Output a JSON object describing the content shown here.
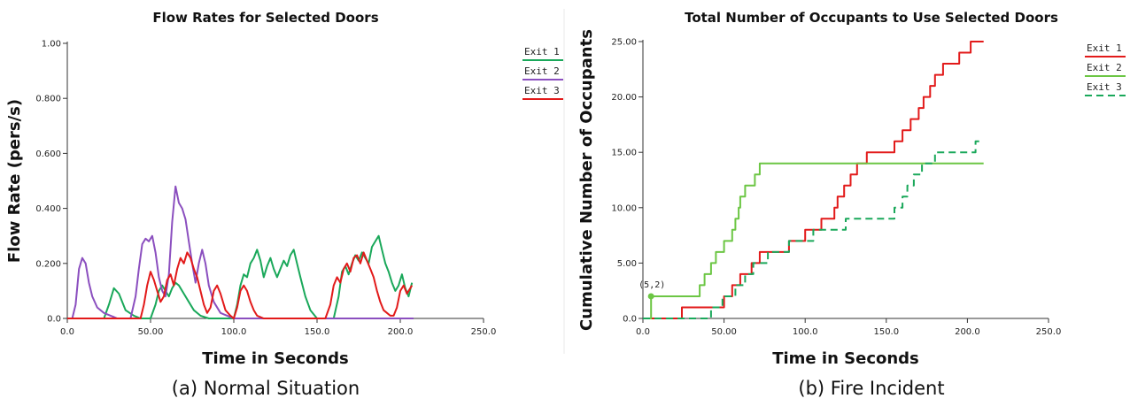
{
  "chart_data": [
    {
      "type": "line",
      "title": "Flow Rates for Selected Doors",
      "xlabel": "Time in Seconds",
      "ylabel": "Flow Rate (pers/s)",
      "caption": "(a) Normal Situation",
      "xlim": [
        0,
        250
      ],
      "ylim": [
        0,
        1.0
      ],
      "xticks": [
        0,
        50,
        100,
        150,
        200,
        250
      ],
      "xtick_labels": [
        "0.0",
        "50.00",
        "100.0",
        "150.0",
        "200.0",
        "250.0"
      ],
      "yticks": [
        0,
        0.2,
        0.4,
        0.6,
        0.8,
        1.0
      ],
      "ytick_labels": [
        "0.0",
        "0.200",
        "0.400",
        "0.600",
        "0.800",
        "1.00"
      ],
      "legend": "right",
      "grid": false,
      "series": [
        {
          "name": "Exit 1",
          "color": "#1aa85a",
          "dash": "",
          "x": [
            0,
            22,
            25,
            28,
            31,
            35,
            40,
            44,
            50,
            53,
            55,
            57,
            59,
            61,
            63,
            65,
            67,
            70,
            73,
            76,
            80,
            85,
            90,
            95,
            100,
            102,
            104,
            106,
            108,
            110,
            112,
            114,
            116,
            118,
            120,
            122,
            124,
            126,
            128,
            130,
            132,
            134,
            136,
            138,
            140,
            143,
            146,
            150,
            155,
            160,
            163,
            165,
            167,
            169,
            171,
            173,
            175,
            177,
            179,
            181,
            183,
            185,
            187,
            189,
            191,
            193,
            195,
            197,
            199,
            201,
            203,
            205,
            207
          ],
          "y": [
            0,
            0,
            0.05,
            0.11,
            0.09,
            0.03,
            0.01,
            0,
            0,
            0.05,
            0.1,
            0.12,
            0.1,
            0.08,
            0.11,
            0.13,
            0.12,
            0.09,
            0.06,
            0.03,
            0.01,
            0,
            0,
            0,
            0,
            0.05,
            0.12,
            0.16,
            0.15,
            0.2,
            0.22,
            0.25,
            0.21,
            0.15,
            0.19,
            0.22,
            0.18,
            0.15,
            0.18,
            0.21,
            0.19,
            0.23,
            0.25,
            0.2,
            0.15,
            0.08,
            0.03,
            0,
            0,
            0,
            0.08,
            0.17,
            0.19,
            0.16,
            0.2,
            0.23,
            0.21,
            0.24,
            0.22,
            0.2,
            0.26,
            0.28,
            0.3,
            0.25,
            0.2,
            0.17,
            0.13,
            0.1,
            0.12,
            0.16,
            0.11,
            0.08,
            0.13
          ]
        },
        {
          "name": "Exit 2",
          "color": "#8b4fbf",
          "dash": "",
          "x": [
            0,
            3,
            5,
            7,
            9,
            11,
            13,
            15,
            18,
            22,
            26,
            30,
            34,
            38,
            41,
            43,
            45,
            47,
            49,
            51,
            53,
            55,
            57,
            59,
            61,
            63,
            65,
            67,
            69,
            71,
            73,
            75,
            77,
            79,
            81,
            83,
            85,
            88,
            92,
            96,
            100,
            105,
            110,
            150,
            208
          ],
          "y": [
            0,
            0,
            0.05,
            0.18,
            0.22,
            0.2,
            0.13,
            0.08,
            0.04,
            0.02,
            0.01,
            0,
            0,
            0,
            0.08,
            0.18,
            0.27,
            0.29,
            0.28,
            0.3,
            0.24,
            0.15,
            0.1,
            0.08,
            0.16,
            0.35,
            0.48,
            0.42,
            0.4,
            0.36,
            0.28,
            0.2,
            0.13,
            0.2,
            0.25,
            0.2,
            0.12,
            0.06,
            0.02,
            0.01,
            0,
            0,
            0,
            0,
            0
          ]
        },
        {
          "name": "Exit 3",
          "color": "#e21a1a",
          "dash": "",
          "x": [
            0,
            44,
            46,
            48,
            50,
            52,
            54,
            56,
            58,
            60,
            62,
            64,
            66,
            68,
            70,
            72,
            74,
            76,
            78,
            80,
            82,
            84,
            86,
            88,
            90,
            92,
            95,
            98,
            100,
            102,
            104,
            106,
            108,
            110,
            112,
            114,
            118,
            122,
            155,
            158,
            160,
            162,
            164,
            166,
            168,
            170,
            172,
            174,
            176,
            178,
            180,
            182,
            184,
            186,
            188,
            190,
            192,
            194,
            196,
            198,
            200,
            202,
            204,
            206,
            207
          ],
          "y": [
            0,
            0,
            0.05,
            0.12,
            0.17,
            0.14,
            0.1,
            0.06,
            0.08,
            0.14,
            0.16,
            0.12,
            0.18,
            0.22,
            0.2,
            0.24,
            0.22,
            0.18,
            0.15,
            0.1,
            0.05,
            0.02,
            0.04,
            0.1,
            0.12,
            0.09,
            0.03,
            0.01,
            0,
            0.04,
            0.1,
            0.12,
            0.1,
            0.06,
            0.03,
            0.01,
            0,
            0,
            0,
            0.05,
            0.12,
            0.15,
            0.13,
            0.18,
            0.2,
            0.17,
            0.22,
            0.23,
            0.2,
            0.24,
            0.21,
            0.18,
            0.15,
            0.1,
            0.06,
            0.03,
            0.02,
            0.01,
            0.01,
            0.04,
            0.1,
            0.12,
            0.09,
            0.11,
            0.12
          ]
        }
      ]
    },
    {
      "type": "line",
      "title": "Total Number of Occupants to Use Selected Doors",
      "xlabel": "Time in Seconds",
      "ylabel": "Cumulative Number of Occupants",
      "caption": "(b) Fire Incident",
      "annotation": "(5,2)",
      "annotation_point": [
        5,
        2
      ],
      "xlim": [
        0,
        250
      ],
      "ylim": [
        0,
        25
      ],
      "xticks": [
        0,
        50,
        100,
        150,
        200,
        250
      ],
      "xtick_labels": [
        "0.0",
        "50.00",
        "100.0",
        "150.0",
        "200.0",
        "250.0"
      ],
      "yticks": [
        0,
        5,
        10,
        15,
        20,
        25
      ],
      "ytick_labels": [
        "0.0",
        "5.00",
        "10.00",
        "15.00",
        "20.00",
        "25.00"
      ],
      "legend": "right",
      "grid": false,
      "series": [
        {
          "name": "Exit 1",
          "color": "#e21a1a",
          "dash": "",
          "x": [
            0,
            24,
            24,
            50,
            50,
            55,
            55,
            60,
            60,
            67,
            67,
            72,
            72,
            90,
            90,
            100,
            100,
            110,
            110,
            118,
            118,
            120,
            120,
            124,
            124,
            128,
            128,
            132,
            132,
            138,
            138,
            155,
            155,
            160,
            160,
            165,
            165,
            170,
            170,
            173,
            173,
            177,
            177,
            180,
            180,
            185,
            185,
            195,
            195,
            202,
            202,
            210
          ],
          "y": [
            0,
            0,
            1,
            1,
            2,
            2,
            3,
            3,
            4,
            4,
            5,
            5,
            6,
            6,
            7,
            7,
            8,
            8,
            9,
            9,
            10,
            10,
            11,
            11,
            12,
            12,
            13,
            13,
            14,
            14,
            15,
            15,
            16,
            16,
            17,
            17,
            18,
            18,
            19,
            19,
            20,
            20,
            21,
            21,
            22,
            22,
            23,
            23,
            24,
            24,
            25,
            25
          ]
        },
        {
          "name": "Exit 2",
          "color": "#6cc644",
          "dash": "",
          "x": [
            0,
            5,
            5,
            35,
            35,
            38,
            38,
            42,
            42,
            45,
            45,
            50,
            50,
            55,
            55,
            57,
            57,
            59,
            59,
            60,
            60,
            63,
            63,
            69,
            69,
            72,
            72,
            76,
            76,
            78,
            78,
            210
          ],
          "y": [
            0,
            0,
            2,
            2,
            3,
            3,
            4,
            4,
            5,
            5,
            6,
            6,
            7,
            7,
            8,
            8,
            9,
            9,
            10,
            10,
            11,
            11,
            12,
            12,
            13,
            13,
            14,
            14,
            14,
            14,
            14,
            14
          ]
        },
        {
          "name": "Exit 3",
          "color": "#1aa85a",
          "dash": "8,5",
          "x": [
            0,
            42,
            42,
            49,
            49,
            57,
            57,
            63,
            63,
            68,
            68,
            77,
            77,
            90,
            90,
            105,
            105,
            125,
            125,
            155,
            155,
            160,
            160,
            163,
            163,
            167,
            167,
            172,
            172,
            175,
            175,
            180,
            180,
            185,
            185,
            205,
            205,
            210
          ],
          "y": [
            0,
            0,
            1,
            1,
            2,
            2,
            3,
            3,
            4,
            4,
            5,
            5,
            6,
            6,
            7,
            7,
            8,
            8,
            9,
            9,
            10,
            10,
            11,
            11,
            12,
            12,
            13,
            13,
            14,
            14,
            14,
            14,
            15,
            15,
            15,
            15,
            16,
            16
          ]
        }
      ]
    }
  ]
}
